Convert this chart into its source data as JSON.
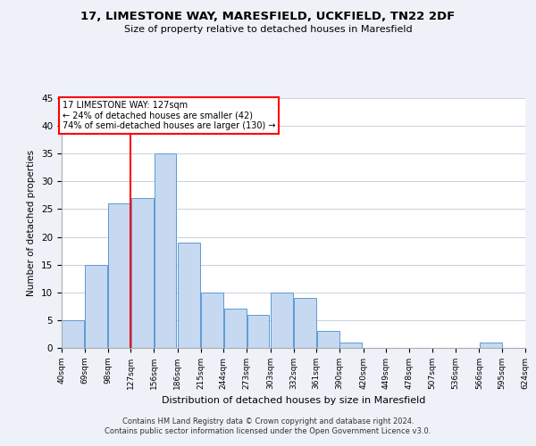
{
  "title": "17, LIMESTONE WAY, MARESFIELD, UCKFIELD, TN22 2DF",
  "subtitle": "Size of property relative to detached houses in Maresfield",
  "xlabel": "Distribution of detached houses by size in Maresfield",
  "ylabel": "Number of detached properties",
  "bar_color": "#c6d9f0",
  "bar_edge_color": "#5b9bd5",
  "vline_x": 127,
  "vline_color": "red",
  "annotation_title": "17 LIMESTONE WAY: 127sqm",
  "annotation_line1": "← 24% of detached houses are smaller (42)",
  "annotation_line2": "74% of semi-detached houses are larger (130) →",
  "bins_left": [
    40,
    69,
    98,
    127,
    156,
    186,
    215,
    244,
    273,
    303,
    332,
    361,
    390,
    420,
    449,
    478,
    507,
    536,
    566,
    595
  ],
  "bin_width": 29,
  "counts": [
    5,
    15,
    26,
    27,
    35,
    19,
    10,
    7,
    6,
    10,
    9,
    3,
    1,
    0,
    0,
    0,
    0,
    0,
    1,
    0
  ],
  "xtick_labels": [
    "40sqm",
    "69sqm",
    "98sqm",
    "127sqm",
    "156sqm",
    "186sqm",
    "215sqm",
    "244sqm",
    "273sqm",
    "303sqm",
    "332sqm",
    "361sqm",
    "390sqm",
    "420sqm",
    "449sqm",
    "478sqm",
    "507sqm",
    "536sqm",
    "566sqm",
    "595sqm",
    "624sqm"
  ],
  "ylim": [
    0,
    45
  ],
  "yticks": [
    0,
    5,
    10,
    15,
    20,
    25,
    30,
    35,
    40,
    45
  ],
  "footer_line1": "Contains HM Land Registry data © Crown copyright and database right 2024.",
  "footer_line2": "Contains public sector information licensed under the Open Government Licence v3.0.",
  "bg_color": "#eef2f8",
  "plot_bg_color": "#ffffff",
  "grid_color": "#c8d0dc"
}
